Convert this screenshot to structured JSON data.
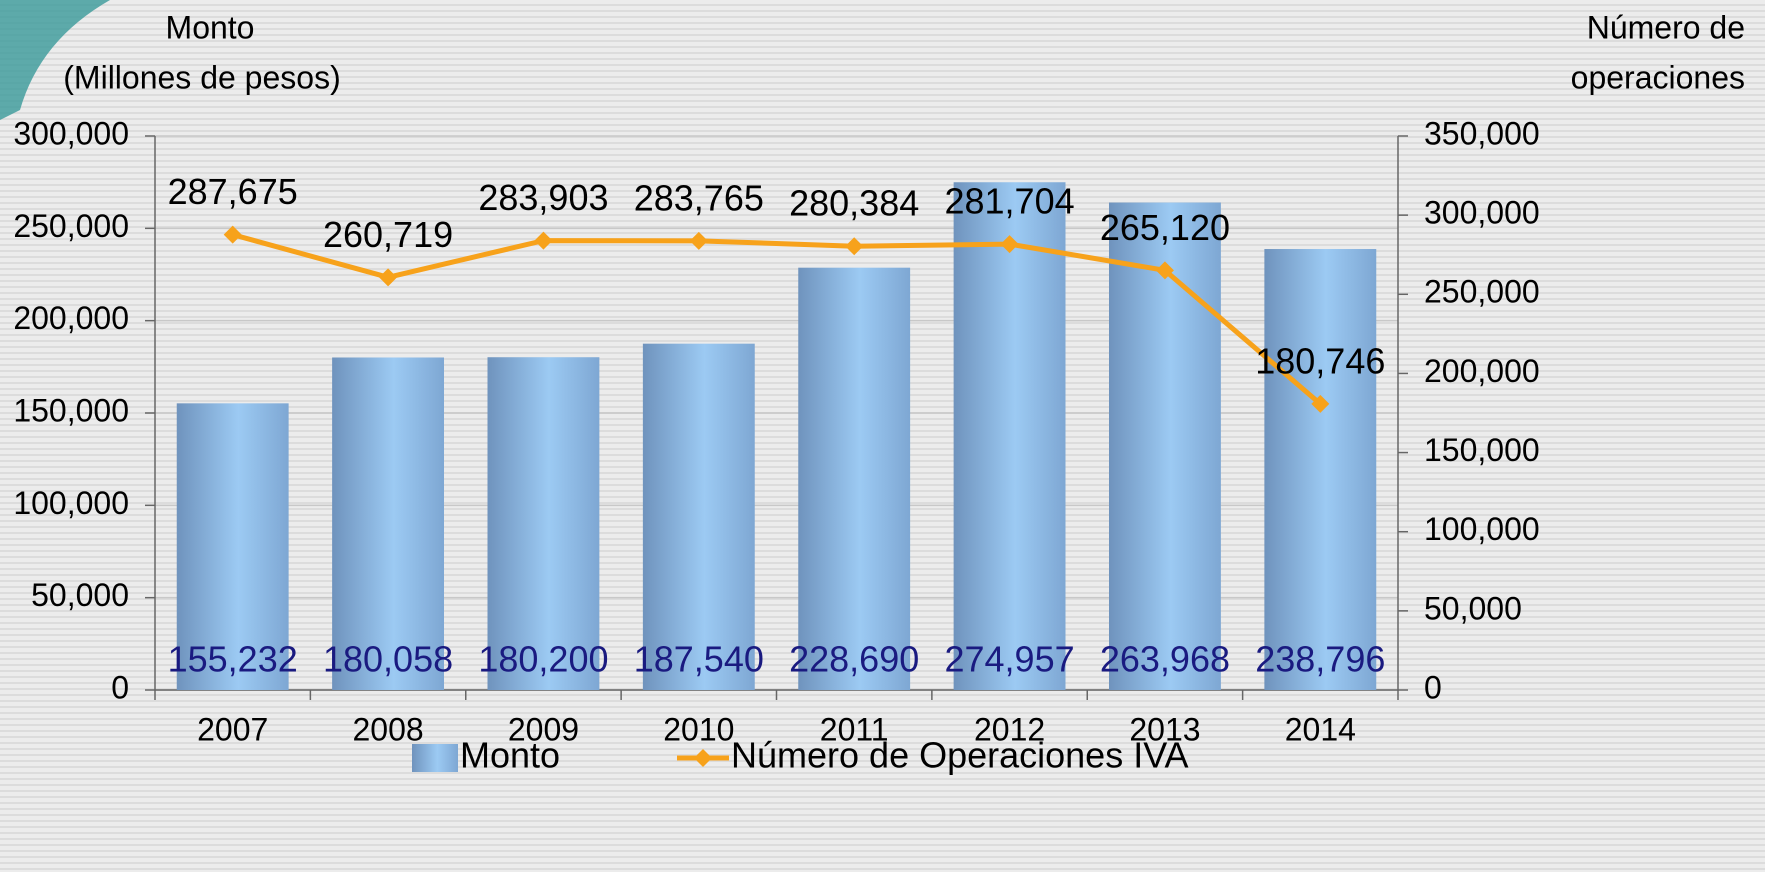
{
  "chart_data": {
    "type": "bar",
    "y_label": [
      "Monto",
      "(Millones de pesos)"
    ],
    "y2_label": [
      "Número de",
      "operaciones"
    ],
    "categories": [
      "2007",
      "2008",
      "2009",
      "2010",
      "2011",
      "2012",
      "2013",
      "2014"
    ],
    "series": [
      {
        "name": "Monto",
        "type": "bar",
        "color": "#8fbde8",
        "values": [
          155232,
          180058,
          180200,
          187540,
          228690,
          274957,
          263968,
          238796
        ],
        "value_labels": [
          "155,232",
          "180,058",
          "180,200",
          "187,540",
          "228,690",
          "274,957",
          "263,968",
          "238,796"
        ],
        "label_color": "#1a1a80"
      },
      {
        "name": "Número de Operaciones IVA",
        "type": "line",
        "axis": "y2",
        "color": "#f7a21b",
        "values": [
          287675,
          260719,
          283903,
          283765,
          280384,
          281704,
          265120,
          180746
        ],
        "value_labels": [
          "287,675",
          "260,719",
          "283,903",
          "283,765",
          "280,384",
          "281,704",
          "265,120",
          "180,746"
        ],
        "label_color": "#000000"
      }
    ],
    "ylim": [
      0,
      300000
    ],
    "yticks": [
      {
        "value": 0,
        "label": "0"
      },
      {
        "value": 50000,
        "label": "50,000"
      },
      {
        "value": 100000,
        "label": "100,000"
      },
      {
        "value": 150000,
        "label": "150,000"
      },
      {
        "value": 200000,
        "label": "200,000"
      },
      {
        "value": 250000,
        "label": "250,000"
      },
      {
        "value": 300000,
        "label": "300,000"
      }
    ],
    "y2lim": [
      0,
      350000
    ],
    "y2ticks": [
      {
        "value": 0,
        "label": "0"
      },
      {
        "value": 50000,
        "label": "50,000"
      },
      {
        "value": 100000,
        "label": "100,000"
      },
      {
        "value": 150000,
        "label": "150,000"
      },
      {
        "value": 200000,
        "label": "200,000"
      },
      {
        "value": 250000,
        "label": "250,000"
      },
      {
        "value": 300000,
        "label": "300,000"
      },
      {
        "value": 350000,
        "label": "350,000"
      }
    ],
    "grid": true,
    "legend": "bottom"
  }
}
